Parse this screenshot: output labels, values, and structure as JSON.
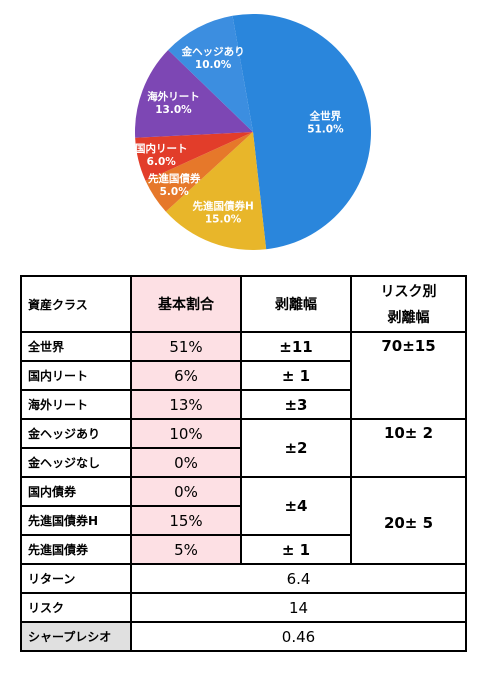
{
  "chart_data": {
    "type": "pie",
    "title": "",
    "slices": [
      {
        "label": "全世界",
        "value": 51.0,
        "display": "51.0%",
        "color": "#2a86dc"
      },
      {
        "label": "先進国債券H",
        "value": 15.0,
        "display": "15.0%",
        "color": "#e8b62a"
      },
      {
        "label": "先進国債券",
        "value": 5.0,
        "display": "5.0%",
        "color": "#e6782a"
      },
      {
        "label": "国内リート",
        "value": 6.0,
        "display": "6.0%",
        "color": "#e23d2a"
      },
      {
        "label": "海外リート",
        "value": 13.0,
        "display": "13.0%",
        "color": "#7d47b4"
      },
      {
        "label": "金ヘッジあり",
        "value": 10.0,
        "display": "10.0%",
        "color": "#3c8ee0"
      }
    ]
  },
  "table": {
    "headers": {
      "asset_class": "資産クラス",
      "base_ratio": "基本割合",
      "deviation": "剥離幅",
      "risk_dev_line1": "リスク別",
      "risk_dev_line2": "剥離幅"
    },
    "rows": [
      {
        "name": "全世界",
        "ratio": "51%",
        "deviation": "±11"
      },
      {
        "name": "国内リート",
        "ratio": "6%",
        "deviation": "± 1"
      },
      {
        "name": "海外リート",
        "ratio": "13%",
        "deviation": "±3"
      },
      {
        "name": "金ヘッジあり",
        "ratio": "10%",
        "deviation": "±2"
      },
      {
        "name": "金ヘッジなし",
        "ratio": "0%"
      },
      {
        "name": "国内債券",
        "ratio": "0%",
        "deviation": "±4"
      },
      {
        "name": "先進国債券H",
        "ratio": "15%"
      },
      {
        "name": "先進国債券",
        "ratio": "5%",
        "deviation": "± 1"
      }
    ],
    "risk_groups": [
      "70±15",
      "10± 2",
      "20± 5"
    ],
    "stats": [
      {
        "label": "リターン",
        "value": "6.4"
      },
      {
        "label": "リスク",
        "value": "14"
      },
      {
        "label": "シャープレシオ",
        "value": "0.46"
      }
    ]
  }
}
